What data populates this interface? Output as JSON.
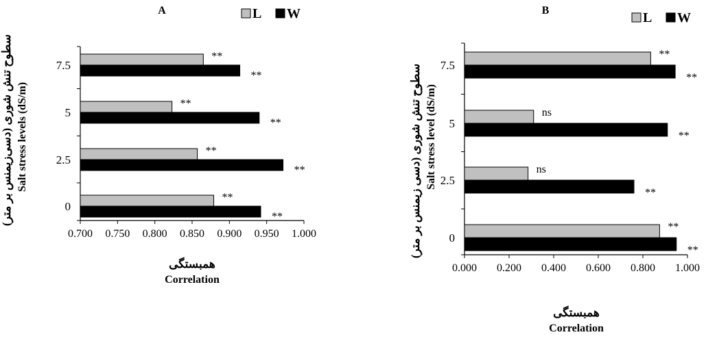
{
  "chart_data": [
    {
      "type": "bar",
      "orientation": "horizontal",
      "panel_label": "A",
      "categories": [
        "0",
        "2.5",
        "5",
        "7.5"
      ],
      "series": [
        {
          "name": "L",
          "values": [
            0.879,
            0.857,
            0.823,
            0.865
          ],
          "color": "#c0c0c0",
          "significance": [
            "**",
            "**",
            "**",
            "**"
          ]
        },
        {
          "name": "W",
          "values": [
            0.942,
            0.972,
            0.94,
            0.914
          ],
          "color": "#000000",
          "significance": [
            "**",
            "**",
            "**",
            "**"
          ]
        }
      ],
      "xlabel_fa": "همبستگی",
      "xlabel": "Correlation",
      "ylabel": "Salt stress levels (dS/m)",
      "ylabel_fa": "سطوح تنش شوری (دسی‌زیمنس بر متر)",
      "xlim": [
        0.7,
        1.0
      ],
      "xticks": [
        "0.700",
        "0.750",
        "0.800",
        "0.850",
        "0.900",
        "0.950",
        "1.000"
      ],
      "legend": "top-right",
      "grid": false
    },
    {
      "type": "bar",
      "orientation": "horizontal",
      "panel_label": "B",
      "categories": [
        "0",
        "2.5",
        "5",
        "7.5"
      ],
      "series": [
        {
          "name": "L",
          "values": [
            0.875,
            0.285,
            0.31,
            0.835
          ],
          "color": "#c0c0c0",
          "significance": [
            "**",
            "ns",
            "ns",
            "**"
          ]
        },
        {
          "name": "W",
          "values": [
            0.95,
            0.76,
            0.91,
            0.945
          ],
          "color": "#000000",
          "significance": [
            "**",
            "**",
            "**",
            "**"
          ]
        }
      ],
      "xlabel_fa": "همبستگی",
      "xlabel": "Correlation",
      "ylabel": "Salt stress level (dS/m)",
      "ylabel_fa": "سطوح تنش شوری (دسی زیمنس بر متر)",
      "xlim": [
        0,
        1.0
      ],
      "xticks": [
        "0.000",
        "0.200",
        "0.400",
        "0.600",
        "0.800",
        "1.000"
      ],
      "legend": "top-right",
      "grid": false
    }
  ]
}
